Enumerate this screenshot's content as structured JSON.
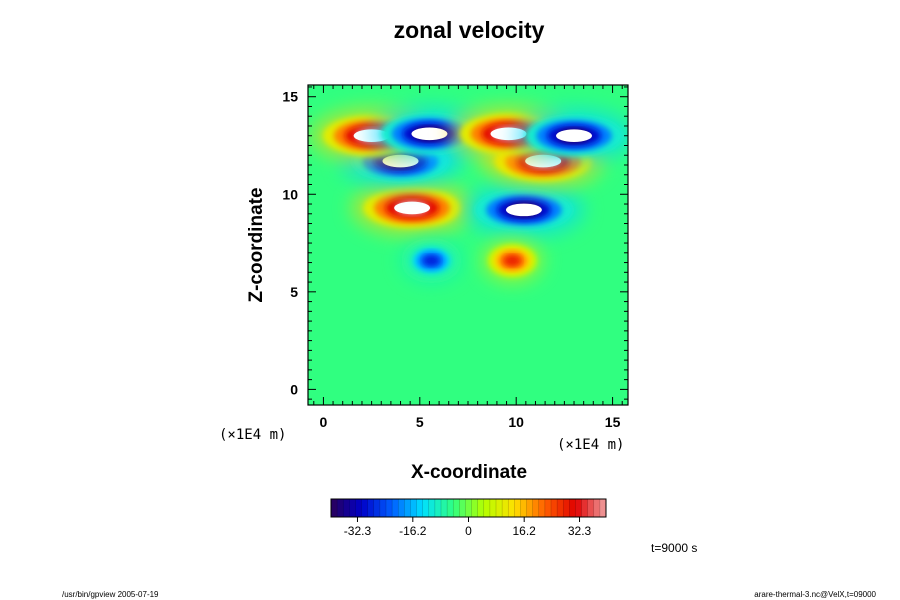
{
  "chart_data": {
    "type": "heatmap",
    "title": "zonal velocity",
    "xlabel": "X-coordinate",
    "ylabel": "Z-coordinate",
    "xlim": [
      -0.8,
      15.8
    ],
    "ylim": [
      -0.8,
      15.6
    ],
    "x_ticks": [
      "0",
      "5",
      "10",
      "15"
    ],
    "y_ticks": [
      "0",
      "5",
      "10",
      "15"
    ],
    "x_tick_values": [
      0,
      5,
      10,
      15
    ],
    "y_tick_values": [
      0,
      5,
      10,
      15
    ],
    "x_units": "(×1E4 m)",
    "y_units": "(×1E4 m)",
    "colorbar": {
      "ticks": [
        "-32.3",
        "-16.2",
        "0",
        "16.2",
        "32.3"
      ],
      "tick_values": [
        -32.3,
        -16.2,
        0,
        16.2,
        32.3
      ],
      "range": [
        -40,
        40
      ],
      "stops": [
        "#2a005a",
        "#0000c8",
        "#0060ff",
        "#00e0ff",
        "#30ff80",
        "#b4ff00",
        "#ffe000",
        "#ff6000",
        "#e00000",
        "#f0a0a0"
      ]
    },
    "features": [
      {
        "x": 4.6,
        "z": 9.3,
        "value": 40
      },
      {
        "x": 10.4,
        "z": 9.2,
        "value": -40
      },
      {
        "x": 4.0,
        "z": 11.7,
        "value": -40
      },
      {
        "x": 11.4,
        "z": 11.7,
        "value": 40
      },
      {
        "x": 2.5,
        "z": 13.0,
        "value": 40
      },
      {
        "x": 5.5,
        "z": 13.1,
        "value": -40
      },
      {
        "x": 9.6,
        "z": 13.1,
        "value": 40
      },
      {
        "x": 13.0,
        "z": 13.0,
        "value": -40
      },
      {
        "x": 5.6,
        "z": 6.6,
        "value": -28
      },
      {
        "x": 9.8,
        "z": 6.6,
        "value": 28
      }
    ]
  },
  "time_label": "t=9000 s",
  "footer": {
    "left": "/usr/bin/gpview 2005-07-19",
    "right": "arare-thermal-3.nc@VelX,t=09000"
  }
}
